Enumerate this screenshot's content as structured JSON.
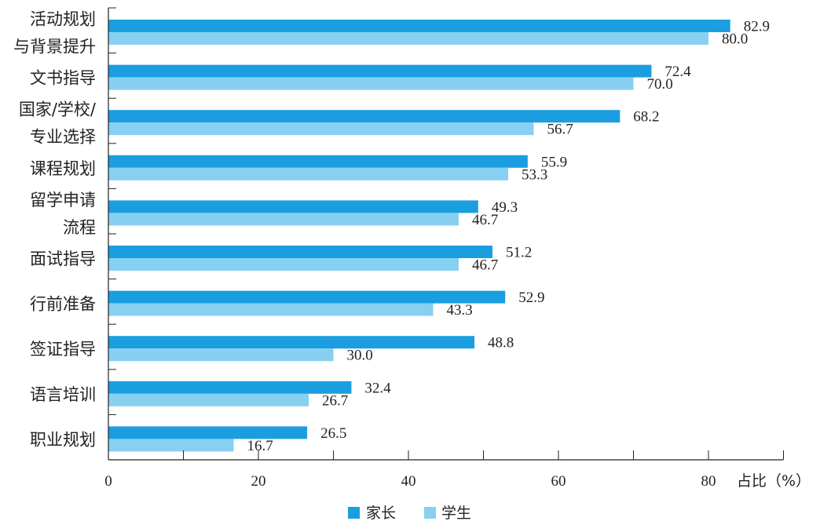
{
  "chart_data": {
    "type": "bar",
    "orientation": "horizontal",
    "categories": [
      [
        "活动规划",
        "与背景提升"
      ],
      [
        "文书指导"
      ],
      [
        "国家/学校/",
        "专业选择"
      ],
      [
        "课程规划"
      ],
      [
        "留学申请",
        "流程"
      ],
      [
        "面试指导"
      ],
      [
        "行前准备"
      ],
      [
        "签证指导"
      ],
      [
        "语言培训"
      ],
      [
        "职业规划"
      ]
    ],
    "series": [
      {
        "name": "家长",
        "color": "#1a9ee0",
        "values": [
          82.9,
          72.4,
          68.2,
          55.9,
          49.3,
          51.2,
          52.9,
          48.8,
          32.4,
          26.5
        ]
      },
      {
        "name": "学生",
        "color": "#87d0f2",
        "values": [
          80.0,
          70.0,
          56.7,
          53.3,
          46.7,
          46.7,
          43.3,
          30.0,
          26.7,
          16.7
        ]
      }
    ],
    "value_labels": [
      [
        "82.9",
        "72.4",
        "68.2",
        "55.9",
        "49.3",
        "51.2",
        "52.9",
        "48.8",
        "32.4",
        "26.5"
      ],
      [
        "80.0",
        "70.0",
        "56.7",
        "53.3",
        "46.7",
        "46.7",
        "43.3",
        "30.0",
        "26.7",
        "16.7"
      ]
    ],
    "x_ticks": [
      0,
      20,
      40,
      60,
      80
    ],
    "xlim": [
      0,
      90
    ],
    "xlabel": "占比（%）",
    "title": "",
    "grid": false,
    "legend_position": "bottom-center"
  }
}
